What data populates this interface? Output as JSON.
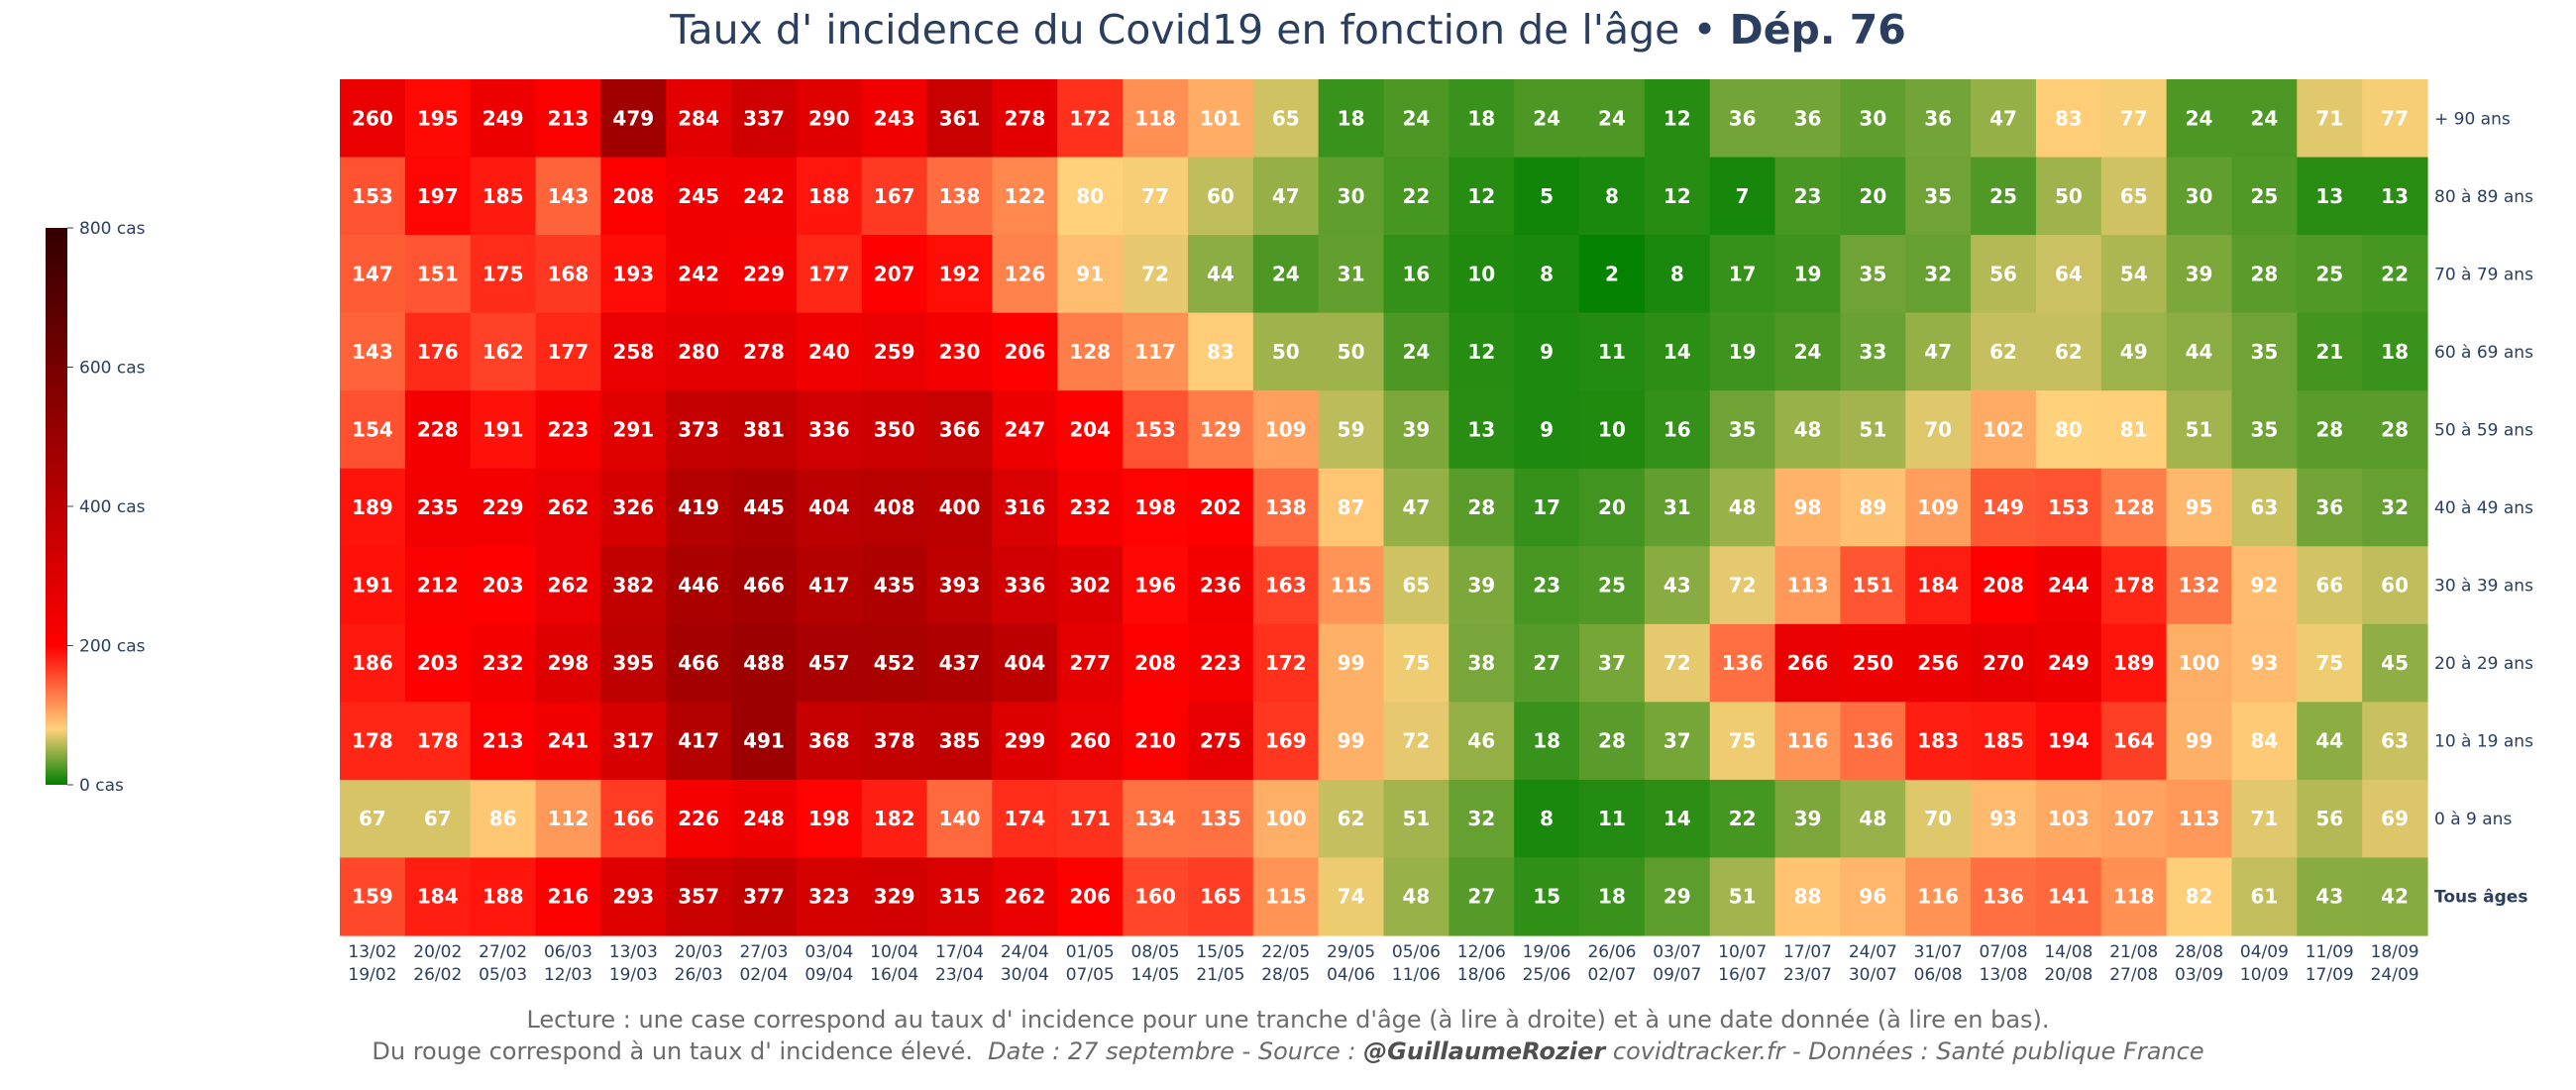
{
  "header": {
    "title_main": "Taux d' incidence du Covid19 en fonction de l'âge",
    "title_sep": " • ",
    "title_dep": "Dép. 76"
  },
  "footer": {
    "line1": "Lecture : une case correspond au taux d' incidence pour une tranche d'âge (à lire à droite) et à une date donnée (à lire en bas).",
    "line2_start": "Du rouge correspond à un taux d' incidence élevé.",
    "line2_date": "Date : 27 septembre - Source :",
    "line2_author": "@GuillaumeRozier",
    "line2_end": "covidtracker.fr - Données : Santé publique France"
  },
  "chart_data": {
    "type": "heatmap",
    "color_scale": {
      "ticks": [
        "800 cas",
        "600 cas",
        "400 cas",
        "200 cas",
        "0 cas"
      ],
      "tick_values": [
        800,
        600,
        400,
        200,
        0
      ],
      "range": [
        0,
        800
      ],
      "colors": [
        "#008000",
        "#ffd17a",
        "#ff0000",
        "#330000"
      ]
    },
    "x_labels": [
      [
        "13/02",
        "19/02"
      ],
      [
        "20/02",
        "26/02"
      ],
      [
        "27/02",
        "05/03"
      ],
      [
        "06/03",
        "12/03"
      ],
      [
        "13/03",
        "19/03"
      ],
      [
        "20/03",
        "26/03"
      ],
      [
        "27/03",
        "02/04"
      ],
      [
        "03/04",
        "09/04"
      ],
      [
        "10/04",
        "16/04"
      ],
      [
        "17/04",
        "23/04"
      ],
      [
        "24/04",
        "30/04"
      ],
      [
        "01/05",
        "07/05"
      ],
      [
        "08/05",
        "14/05"
      ],
      [
        "15/05",
        "21/05"
      ],
      [
        "22/05",
        "28/05"
      ],
      [
        "29/05",
        "04/06"
      ],
      [
        "05/06",
        "11/06"
      ],
      [
        "12/06",
        "18/06"
      ],
      [
        "19/06",
        "25/06"
      ],
      [
        "26/06",
        "02/07"
      ],
      [
        "03/07",
        "09/07"
      ],
      [
        "10/07",
        "16/07"
      ],
      [
        "17/07",
        "23/07"
      ],
      [
        "24/07",
        "30/07"
      ],
      [
        "31/07",
        "06/08"
      ],
      [
        "07/08",
        "13/08"
      ],
      [
        "14/08",
        "20/08"
      ],
      [
        "21/08",
        "27/08"
      ],
      [
        "28/08",
        "03/09"
      ],
      [
        "04/09",
        "10/09"
      ],
      [
        "11/09",
        "17/09"
      ],
      [
        "18/09",
        "24/09"
      ]
    ],
    "y_labels": [
      "+ 90 ans",
      "80 à 89 ans",
      "70 à 79 ans",
      "60 à 69 ans",
      "50 à 59 ans",
      "40 à 49 ans",
      "30 à 39 ans",
      "20 à 29 ans",
      "10 à 19 ans",
      "0 à 9 ans",
      "Tous âges"
    ],
    "values": [
      [
        260,
        195,
        249,
        213,
        479,
        284,
        337,
        290,
        243,
        361,
        278,
        172,
        118,
        101,
        65,
        18,
        24,
        18,
        24,
        24,
        12,
        36,
        36,
        30,
        36,
        47,
        83,
        77,
        24,
        24,
        71,
        77
      ],
      [
        153,
        197,
        185,
        143,
        208,
        245,
        242,
        188,
        167,
        138,
        122,
        80,
        77,
        60,
        47,
        30,
        22,
        12,
        5,
        8,
        12,
        7,
        23,
        20,
        35,
        25,
        50,
        65,
        30,
        25,
        13,
        13
      ],
      [
        147,
        151,
        175,
        168,
        193,
        242,
        229,
        177,
        207,
        192,
        126,
        91,
        72,
        44,
        24,
        31,
        16,
        10,
        8,
        2,
        8,
        17,
        19,
        35,
        32,
        56,
        64,
        54,
        39,
        28,
        25,
        22
      ],
      [
        143,
        176,
        162,
        177,
        258,
        280,
        278,
        240,
        259,
        230,
        206,
        128,
        117,
        83,
        50,
        50,
        24,
        12,
        9,
        11,
        14,
        19,
        24,
        33,
        47,
        62,
        62,
        49,
        44,
        35,
        21,
        18
      ],
      [
        154,
        228,
        191,
        223,
        291,
        373,
        381,
        336,
        350,
        366,
        247,
        204,
        153,
        129,
        109,
        59,
        39,
        13,
        9,
        10,
        16,
        35,
        48,
        51,
        70,
        102,
        80,
        81,
        51,
        35,
        28,
        28
      ],
      [
        189,
        235,
        229,
        262,
        326,
        419,
        445,
        404,
        408,
        400,
        316,
        232,
        198,
        202,
        138,
        87,
        47,
        28,
        17,
        20,
        31,
        48,
        98,
        89,
        109,
        149,
        153,
        128,
        95,
        63,
        36,
        32
      ],
      [
        191,
        212,
        203,
        262,
        382,
        446,
        466,
        417,
        435,
        393,
        336,
        302,
        196,
        236,
        163,
        115,
        65,
        39,
        23,
        25,
        43,
        72,
        113,
        151,
        184,
        208,
        244,
        178,
        132,
        92,
        66,
        60
      ],
      [
        186,
        203,
        232,
        298,
        395,
        466,
        488,
        457,
        452,
        437,
        404,
        277,
        208,
        223,
        172,
        99,
        75,
        38,
        27,
        37,
        72,
        136,
        266,
        250,
        256,
        270,
        249,
        189,
        100,
        93,
        75,
        45
      ],
      [
        178,
        178,
        213,
        241,
        317,
        417,
        491,
        368,
        378,
        385,
        299,
        260,
        210,
        275,
        169,
        99,
        72,
        46,
        18,
        28,
        37,
        75,
        116,
        136,
        183,
        185,
        194,
        164,
        99,
        84,
        44,
        63
      ],
      [
        67,
        67,
        86,
        112,
        166,
        226,
        248,
        198,
        182,
        140,
        174,
        171,
        134,
        135,
        100,
        62,
        51,
        32,
        8,
        11,
        14,
        22,
        39,
        48,
        70,
        93,
        103,
        107,
        113,
        71,
        56,
        69
      ],
      [
        159,
        184,
        188,
        216,
        293,
        357,
        377,
        323,
        329,
        315,
        262,
        206,
        160,
        165,
        115,
        74,
        48,
        27,
        15,
        18,
        29,
        51,
        88,
        96,
        116,
        136,
        141,
        118,
        82,
        61,
        43,
        42
      ]
    ]
  }
}
